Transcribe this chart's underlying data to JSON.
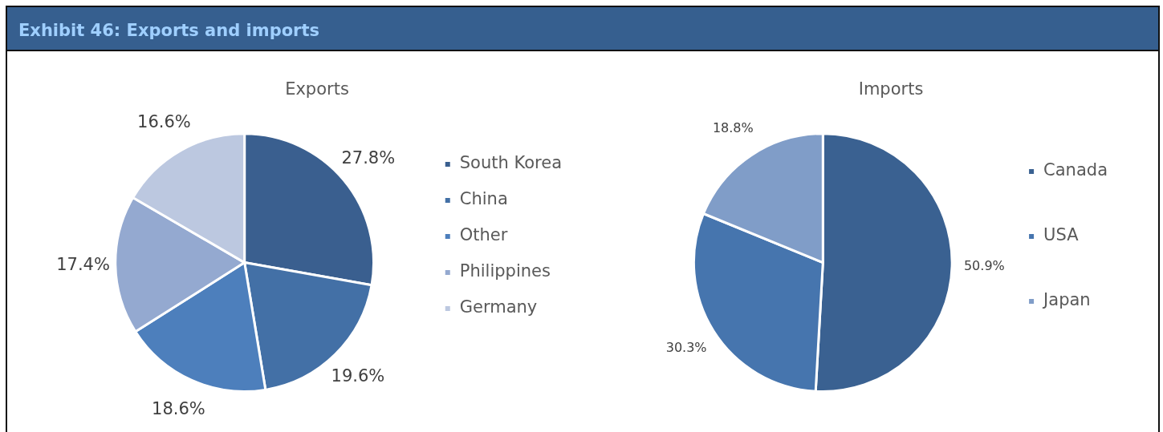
{
  "chart_data": [
    {
      "type": "pie",
      "title": "Exports",
      "annotations": [
        "Exhibit 46: Exports and imports"
      ],
      "categories": [
        "South Korea",
        "China",
        "Other",
        "Philippines",
        "Germany"
      ],
      "values": [
        27.8,
        19.6,
        18.6,
        17.4,
        16.6
      ],
      "colors": [
        "#3a5f8f",
        "#4370a6",
        "#4d7fbc",
        "#94a9d0",
        "#bcc8e0"
      ],
      "value_labels": [
        "27.8%",
        "19.6%",
        "18.6%",
        "17.4%",
        "16.6%"
      ],
      "legend": "right"
    },
    {
      "type": "pie",
      "title": "Imports",
      "categories": [
        "Canada",
        "USA",
        "Japan"
      ],
      "values": [
        50.9,
        30.3,
        18.8
      ],
      "colors": [
        "#3a6191",
        "#4675ae",
        "#809dc8"
      ],
      "value_labels": [
        "50.9%",
        "30.3%",
        "18.8%"
      ],
      "legend": "right"
    }
  ]
}
